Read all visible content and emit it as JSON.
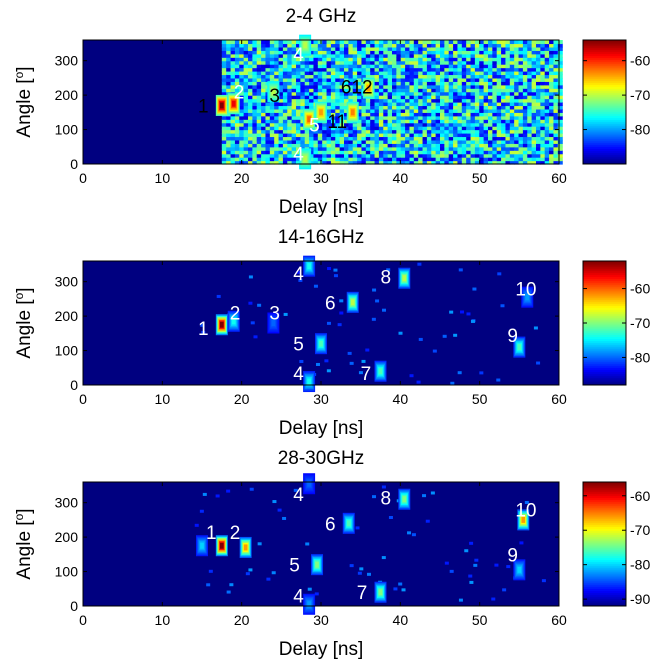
{
  "chart_data": [
    {
      "type": "heatmap",
      "title": "2-4 GHz",
      "xlabel": "Delay [ns]",
      "ylabel": "Angle [",
      "ylabel_sup": "o",
      "ylabel_close": "]",
      "xlim": [
        0,
        60
      ],
      "ylim": [
        0,
        360
      ],
      "xticks": [
        0,
        10,
        20,
        30,
        40,
        50,
        60
      ],
      "yticks": [
        0,
        100,
        200,
        300
      ],
      "colorbar": {
        "range": [
          -90,
          -54
        ],
        "ticks": [
          -60,
          -70,
          -80
        ]
      },
      "background_level": -90,
      "onset_delay": 17.5,
      "noise_level": -78,
      "noise_end_delay": 60,
      "annotations": [
        {
          "text": "1",
          "x": 14.5,
          "y": 170,
          "color": "#000000"
        },
        {
          "text": "2",
          "x": 19,
          "y": 210,
          "color": "#ffffff"
        },
        {
          "text": "3",
          "x": 23.5,
          "y": 200,
          "color": "#000000"
        },
        {
          "text": "4",
          "x": 26.5,
          "y": 320,
          "color": "#ffffff"
        },
        {
          "text": "4",
          "x": 26.5,
          "y": 30,
          "color": "#ffffff"
        },
        {
          "text": "5",
          "x": 28.5,
          "y": 115,
          "color": "#ffffff"
        },
        {
          "text": "11",
          "x": 30.8,
          "y": 125,
          "color": "#000000"
        },
        {
          "text": "612",
          "x": 32.5,
          "y": 225,
          "color": "#000000"
        }
      ],
      "peaks": [
        {
          "x": 17.5,
          "y": 170,
          "value": -54
        },
        {
          "x": 19,
          "y": 175,
          "value": -58
        },
        {
          "x": 24,
          "y": 210,
          "value": -70
        },
        {
          "x": 28.5,
          "y": 130,
          "value": -62
        },
        {
          "x": 30,
          "y": 150,
          "value": -64
        },
        {
          "x": 34,
          "y": 150,
          "value": -63
        },
        {
          "x": 36,
          "y": 220,
          "value": -64
        },
        {
          "x": 28,
          "y": 15,
          "value": -70
        },
        {
          "x": 28,
          "y": 345,
          "value": -70
        }
      ]
    },
    {
      "type": "heatmap",
      "title": "14-16GHz",
      "xlabel": "Delay [ns]",
      "ylabel": "Angle [",
      "ylabel_sup": "o",
      "ylabel_close": "]",
      "xlim": [
        0,
        60
      ],
      "ylim": [
        0,
        360
      ],
      "xticks": [
        0,
        10,
        20,
        30,
        40,
        50,
        60
      ],
      "yticks": [
        0,
        100,
        200,
        300
      ],
      "colorbar": {
        "range": [
          -88,
          -52
        ],
        "ticks": [
          -60,
          -70,
          -80
        ]
      },
      "background_level": -88,
      "onset_delay": 60,
      "noise_level": -88,
      "noise_end_delay": 60,
      "annotations": [
        {
          "text": "1",
          "x": 14.5,
          "y": 165,
          "color": "#ffffff"
        },
        {
          "text": "2",
          "x": 18.5,
          "y": 210,
          "color": "#ffffff"
        },
        {
          "text": "3",
          "x": 23.5,
          "y": 210,
          "color": "#ffffff"
        },
        {
          "text": "4",
          "x": 26.5,
          "y": 325,
          "color": "#ffffff"
        },
        {
          "text": "4",
          "x": 26.5,
          "y": 35,
          "color": "#ffffff"
        },
        {
          "text": "5",
          "x": 26.5,
          "y": 120,
          "color": "#ffffff"
        },
        {
          "text": "6",
          "x": 30.5,
          "y": 240,
          "color": "#ffffff"
        },
        {
          "text": "7",
          "x": 35,
          "y": 35,
          "color": "#ffffff"
        },
        {
          "text": "8",
          "x": 37.5,
          "y": 315,
          "color": "#ffffff"
        },
        {
          "text": "9",
          "x": 53.5,
          "y": 145,
          "color": "#ffffff"
        },
        {
          "text": "10",
          "x": 54.5,
          "y": 280,
          "color": "#ffffff"
        }
      ],
      "peaks": [
        {
          "x": 17.5,
          "y": 175,
          "value": -52
        },
        {
          "x": 19,
          "y": 185,
          "value": -74
        },
        {
          "x": 24,
          "y": 180,
          "value": -80
        },
        {
          "x": 28.5,
          "y": 345,
          "value": -74
        },
        {
          "x": 28.5,
          "y": 10,
          "value": -74
        },
        {
          "x": 30,
          "y": 120,
          "value": -72
        },
        {
          "x": 34,
          "y": 240,
          "value": -68
        },
        {
          "x": 37.5,
          "y": 40,
          "value": -72
        },
        {
          "x": 40.5,
          "y": 310,
          "value": -68
        },
        {
          "x": 55,
          "y": 110,
          "value": -72
        },
        {
          "x": 56,
          "y": 255,
          "value": -78
        }
      ]
    },
    {
      "type": "heatmap",
      "title": "28-30GHz",
      "xlabel": "Delay [ns]",
      "ylabel": "Angle [",
      "ylabel_sup": "o",
      "ylabel_close": "]",
      "xlim": [
        0,
        60
      ],
      "ylim": [
        0,
        360
      ],
      "xticks": [
        0,
        10,
        20,
        30,
        40,
        50,
        60
      ],
      "yticks": [
        0,
        100,
        200,
        300
      ],
      "colorbar": {
        "range": [
          -92,
          -56
        ],
        "ticks": [
          -60,
          -70,
          -80,
          -90
        ]
      },
      "background_level": -92,
      "onset_delay": 60,
      "noise_level": -92,
      "noise_end_delay": 60,
      "annotations": [
        {
          "text": "1",
          "x": 15.5,
          "y": 215,
          "color": "#ffffff"
        },
        {
          "text": "2",
          "x": 18.5,
          "y": 215,
          "color": "#ffffff"
        },
        {
          "text": "4",
          "x": 26.5,
          "y": 325,
          "color": "#ffffff"
        },
        {
          "text": "4",
          "x": 26.5,
          "y": 30,
          "color": "#ffffff"
        },
        {
          "text": "5",
          "x": 26,
          "y": 120,
          "color": "#ffffff"
        },
        {
          "text": "6",
          "x": 30.5,
          "y": 240,
          "color": "#ffffff"
        },
        {
          "text": "7",
          "x": 34.5,
          "y": 40,
          "color": "#ffffff"
        },
        {
          "text": "8",
          "x": 37.5,
          "y": 315,
          "color": "#ffffff"
        },
        {
          "text": "9",
          "x": 53.5,
          "y": 150,
          "color": "#ffffff"
        },
        {
          "text": "10",
          "x": 54.5,
          "y": 280,
          "color": "#ffffff"
        }
      ],
      "peaks": [
        {
          "x": 17.5,
          "y": 175,
          "value": -56
        },
        {
          "x": 20.5,
          "y": 170,
          "value": -66
        },
        {
          "x": 15,
          "y": 175,
          "value": -80
        },
        {
          "x": 28.5,
          "y": 5,
          "value": -82
        },
        {
          "x": 28.5,
          "y": 355,
          "value": -84
        },
        {
          "x": 29.5,
          "y": 120,
          "value": -74
        },
        {
          "x": 33.5,
          "y": 240,
          "value": -76
        },
        {
          "x": 37.5,
          "y": 40,
          "value": -74
        },
        {
          "x": 40.5,
          "y": 310,
          "value": -74
        },
        {
          "x": 55.5,
          "y": 250,
          "value": -66
        },
        {
          "x": 55,
          "y": 105,
          "value": -80
        }
      ]
    }
  ]
}
